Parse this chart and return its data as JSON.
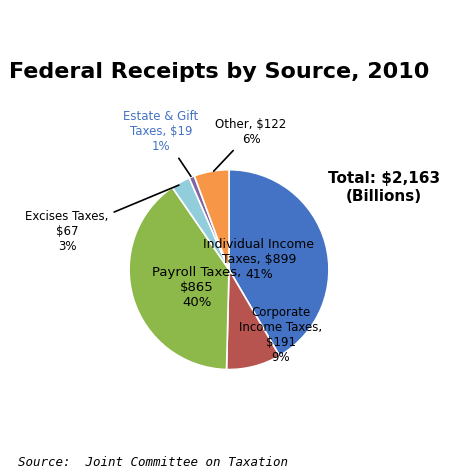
{
  "title": "Federal Receipts by Source, 2010",
  "total_label": "Total: $2,163\n(Billions)",
  "source_text": "Source:  Joint Committee on Taxation",
  "values": [
    899,
    191,
    865,
    67,
    19,
    122
  ],
  "colors": [
    "#4472C4",
    "#B85450",
    "#8DB84A",
    "#92CDDC",
    "#8064A2",
    "#F79646"
  ],
  "background_color": "#FFFFFF",
  "title_fontsize": 16,
  "source_fontsize": 9
}
